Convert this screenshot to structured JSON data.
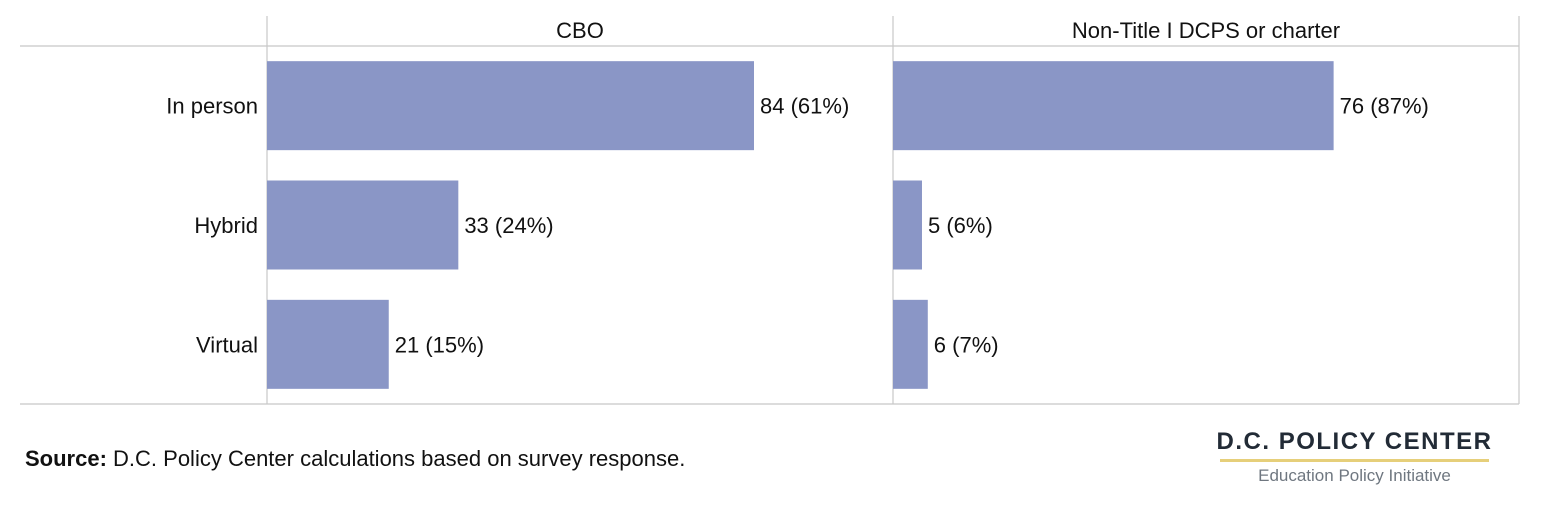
{
  "chart_data": {
    "type": "bar",
    "orientation": "horizontal",
    "categories": [
      "In person",
      "Hybrid",
      "Virtual"
    ],
    "panels": [
      {
        "title": "CBO",
        "values": [
          84,
          33,
          21
        ],
        "labels": [
          "84 (61%)",
          "33 (24%)",
          "21 (15%)"
        ]
      },
      {
        "title": "Non-Title I DCPS or charter",
        "values": [
          76,
          5,
          6
        ],
        "labels": [
          "76 (87%)",
          "5 (6%)",
          "6 (7%)"
        ]
      }
    ],
    "xlim": [
      0,
      108
    ],
    "bar_color": "#8a96c6",
    "grid": false,
    "legend": "none"
  },
  "footer": {
    "source_label": "Source:",
    "source_text": " D.C. Policy Center calculations based on survey response."
  },
  "logo": {
    "name": "D.C. POLICY CENTER",
    "subtitle": "Education Policy Initiative"
  }
}
